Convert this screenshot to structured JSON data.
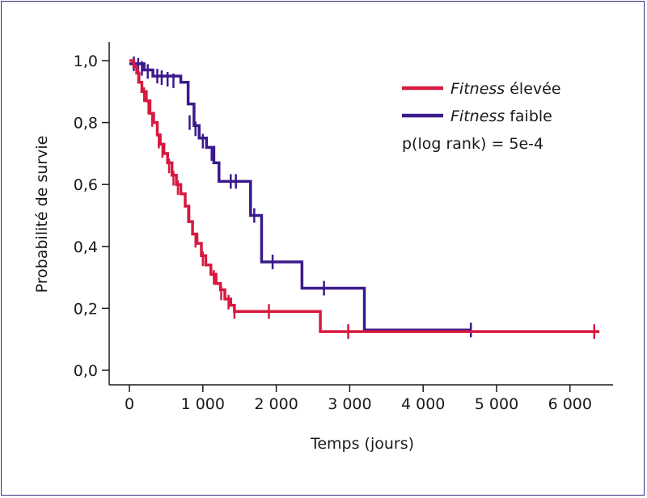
{
  "chart_data": {
    "type": "line",
    "chart_subtype": "kaplan-meier",
    "xlabel": "Temps (jours)",
    "ylabel": "Probabilité de survie",
    "xlim": [
      0,
      6500
    ],
    "ylim": [
      0,
      1.0
    ],
    "x_ticks": [
      0,
      1000,
      2000,
      3000,
      4000,
      5000,
      6000
    ],
    "x_tick_labels": [
      "0",
      "1 000",
      "2 000",
      "3 000",
      "4 000",
      "5 000",
      "6 000"
    ],
    "y_ticks": [
      0,
      0.2,
      0.4,
      0.6,
      0.8,
      1.0
    ],
    "y_tick_labels": [
      "0,0",
      "0,2",
      "0,4",
      "0,6",
      "0,8",
      "1,0"
    ],
    "grid": false,
    "legend_position": "top-right",
    "annotation": "p(log rank) = 5e-4",
    "series": [
      {
        "name_italic": "Fitness",
        "name_rest": " élevée",
        "color": "#d7193f",
        "steps": [
          [
            0,
            1.0
          ],
          [
            60,
            0.98
          ],
          [
            100,
            0.96
          ],
          [
            130,
            0.93
          ],
          [
            170,
            0.9
          ],
          [
            230,
            0.87
          ],
          [
            280,
            0.83
          ],
          [
            330,
            0.8
          ],
          [
            380,
            0.76
          ],
          [
            420,
            0.73
          ],
          [
            470,
            0.7
          ],
          [
            520,
            0.67
          ],
          [
            580,
            0.63
          ],
          [
            640,
            0.6
          ],
          [
            700,
            0.57
          ],
          [
            760,
            0.53
          ],
          [
            810,
            0.48
          ],
          [
            860,
            0.44
          ],
          [
            920,
            0.41
          ],
          [
            980,
            0.37
          ],
          [
            1040,
            0.34
          ],
          [
            1110,
            0.31
          ],
          [
            1180,
            0.28
          ],
          [
            1240,
            0.26
          ],
          [
            1300,
            0.23
          ],
          [
            1380,
            0.21
          ],
          [
            1430,
            0.19
          ],
          [
            2600,
            0.125
          ],
          [
            6400,
            0.125
          ]
        ],
        "censored": [
          [
            120,
            0.95
          ],
          [
            200,
            0.89
          ],
          [
            260,
            0.85
          ],
          [
            310,
            0.81
          ],
          [
            400,
            0.74
          ],
          [
            450,
            0.71
          ],
          [
            540,
            0.66
          ],
          [
            600,
            0.62
          ],
          [
            660,
            0.59
          ],
          [
            800,
            0.5
          ],
          [
            900,
            0.42
          ],
          [
            1000,
            0.36
          ],
          [
            1150,
            0.3
          ],
          [
            1250,
            0.25
          ],
          [
            1350,
            0.22
          ],
          [
            1430,
            0.19
          ],
          [
            1900,
            0.19
          ],
          [
            2980,
            0.125
          ],
          [
            6330,
            0.125
          ]
        ]
      },
      {
        "name_italic": "Fitness",
        "name_rest": " faible",
        "color": "#3b1a8c",
        "steps": [
          [
            0,
            0.99
          ],
          [
            200,
            0.97
          ],
          [
            320,
            0.95
          ],
          [
            700,
            0.93
          ],
          [
            800,
            0.86
          ],
          [
            880,
            0.79
          ],
          [
            950,
            0.75
          ],
          [
            1050,
            0.72
          ],
          [
            1150,
            0.67
          ],
          [
            1220,
            0.61
          ],
          [
            1650,
            0.5
          ],
          [
            1800,
            0.35
          ],
          [
            2350,
            0.265
          ],
          [
            3200,
            0.13
          ],
          [
            4650,
            0.13
          ]
        ],
        "censored": [
          [
            60,
            0.99
          ],
          [
            120,
            0.985
          ],
          [
            170,
            0.975
          ],
          [
            250,
            0.965
          ],
          [
            380,
            0.95
          ],
          [
            440,
            0.945
          ],
          [
            520,
            0.94
          ],
          [
            600,
            0.935
          ],
          [
            820,
            0.8
          ],
          [
            900,
            0.78
          ],
          [
            1000,
            0.74
          ],
          [
            1120,
            0.7
          ],
          [
            1380,
            0.61
          ],
          [
            1450,
            0.61
          ],
          [
            1700,
            0.5
          ],
          [
            1950,
            0.35
          ],
          [
            2650,
            0.265
          ],
          [
            4650,
            0.13
          ]
        ]
      }
    ]
  }
}
